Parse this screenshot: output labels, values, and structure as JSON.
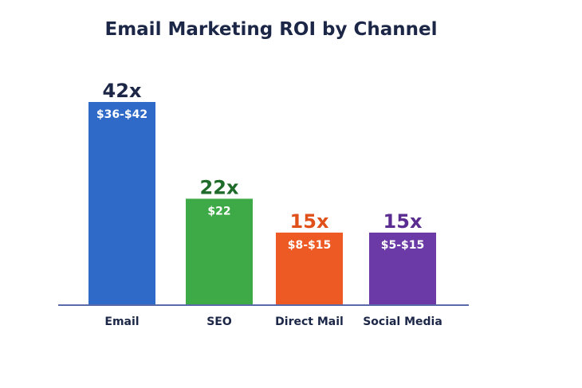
{
  "chart_data": {
    "type": "bar",
    "title": "Email Marketing ROI by Channel",
    "xlabel": "",
    "ylabel": "",
    "categories": [
      "Email",
      "SEO",
      "Direct Mail",
      "Social Media"
    ],
    "values": [
      42,
      22,
      15,
      15
    ],
    "value_labels": [
      "42x",
      "22x",
      "15x",
      "15x"
    ],
    "range_labels": [
      "$36-$42",
      "$22",
      "$8-$15",
      "$5-$15"
    ],
    "colors": [
      "#2f6ac9",
      "#3eaa47",
      "#ee5a24",
      "#6b3aa6"
    ],
    "value_label_colors": [
      "#1c2748",
      "#1f6b2a",
      "#e0501a",
      "#5b2d91"
    ],
    "ylim": [
      0,
      42
    ],
    "grid": false,
    "legend": "none",
    "axis_color": "#5a6aa8"
  }
}
